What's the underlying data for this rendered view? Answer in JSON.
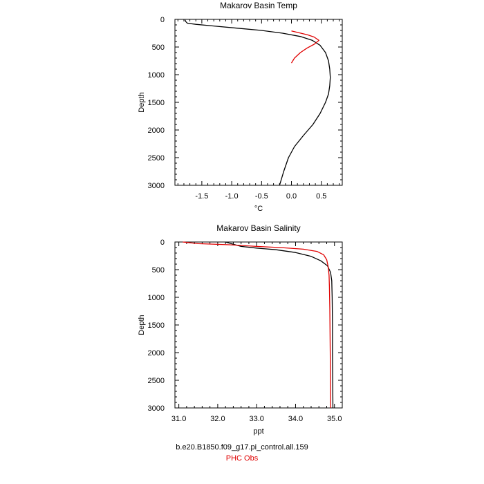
{
  "colors": {
    "model": "#000000",
    "obs": "#e00000",
    "axis": "#000000"
  },
  "legend": {
    "model_label": "b.e20.B1850.f09_g17.pi_control.all.159",
    "obs_label": "PHC Obs"
  },
  "chart_data": [
    {
      "type": "line",
      "title": "Makarov Basin Temp",
      "xlabel": "°C",
      "ylabel": "Depth",
      "xlim": [
        -1.95,
        0.85
      ],
      "ylim": [
        3000,
        0
      ],
      "x_major_ticks": [
        -1.5,
        -1.0,
        -0.5,
        0.0,
        0.5
      ],
      "x_tick_labels": [
        "-1.5",
        "-1.0",
        "-0.5",
        "0.0",
        "0.5"
      ],
      "y_major_ticks": [
        0,
        500,
        1000,
        1500,
        2000,
        2500,
        3000
      ],
      "y_tick_labels": [
        "0",
        "500",
        "1000",
        "1500",
        "2000",
        "2500",
        "3000"
      ],
      "grid": false,
      "series": [
        {
          "key": "model",
          "points": [
            [
              -1.78,
              10
            ],
            [
              -1.77,
              40
            ],
            [
              -1.74,
              70
            ],
            [
              -1.6,
              90
            ],
            [
              -1.3,
              120
            ],
            [
              -0.9,
              160
            ],
            [
              -0.5,
              200
            ],
            [
              -0.15,
              250
            ],
            [
              0.15,
              310
            ],
            [
              0.35,
              380
            ],
            [
              0.48,
              470
            ],
            [
              0.57,
              600
            ],
            [
              0.62,
              750
            ],
            [
              0.64,
              900
            ],
            [
              0.65,
              1050
            ],
            [
              0.64,
              1200
            ],
            [
              0.62,
              1350
            ],
            [
              0.57,
              1500
            ],
            [
              0.48,
              1700
            ],
            [
              0.36,
              1900
            ],
            [
              0.2,
              2100
            ],
            [
              0.05,
              2300
            ],
            [
              -0.05,
              2500
            ],
            [
              -0.13,
              2750
            ],
            [
              -0.2,
              3000
            ]
          ]
        },
        {
          "key": "obs",
          "points": [
            [
              0.0,
              210
            ],
            [
              0.12,
              240
            ],
            [
              0.27,
              280
            ],
            [
              0.38,
              320
            ],
            [
              0.46,
              380
            ],
            [
              0.38,
              450
            ],
            [
              0.26,
              520
            ],
            [
              0.15,
              600
            ],
            [
              0.05,
              700
            ],
            [
              0.0,
              790
            ]
          ]
        }
      ]
    },
    {
      "type": "line",
      "title": "Makarov Basin Salinity",
      "xlabel": "ppt",
      "ylabel": "Depth",
      "xlim": [
        30.9,
        35.2
      ],
      "ylim": [
        3000,
        0
      ],
      "x_major_ticks": [
        31.0,
        32.0,
        33.0,
        34.0,
        35.0
      ],
      "x_tick_labels": [
        "31.0",
        "32.0",
        "33.0",
        "34.0",
        "35.0"
      ],
      "y_major_ticks": [
        0,
        500,
        1000,
        1500,
        2000,
        2500,
        3000
      ],
      "y_tick_labels": [
        "0",
        "500",
        "1000",
        "1500",
        "2000",
        "2500",
        "3000"
      ],
      "grid": false,
      "series": [
        {
          "key": "model",
          "points": [
            [
              32.2,
              0
            ],
            [
              32.4,
              40
            ],
            [
              32.6,
              80
            ],
            [
              33.0,
              110
            ],
            [
              33.5,
              140
            ],
            [
              34.0,
              190
            ],
            [
              34.4,
              260
            ],
            [
              34.65,
              340
            ],
            [
              34.82,
              430
            ],
            [
              34.9,
              550
            ],
            [
              34.93,
              700
            ],
            [
              34.94,
              1000
            ],
            [
              34.95,
              1500
            ],
            [
              34.95,
              2000
            ],
            [
              34.96,
              3000
            ]
          ]
        },
        {
          "key": "obs",
          "points": [
            [
              31.1,
              0
            ],
            [
              31.5,
              30
            ],
            [
              32.3,
              50
            ],
            [
              33.0,
              80
            ],
            [
              33.6,
              100
            ],
            [
              34.2,
              130
            ],
            [
              34.55,
              170
            ],
            [
              34.72,
              230
            ],
            [
              34.8,
              320
            ],
            [
              34.84,
              450
            ],
            [
              34.86,
              600
            ],
            [
              34.87,
              800
            ],
            [
              34.88,
              1200
            ],
            [
              34.89,
              2000
            ],
            [
              34.9,
              3000
            ]
          ]
        }
      ]
    }
  ]
}
